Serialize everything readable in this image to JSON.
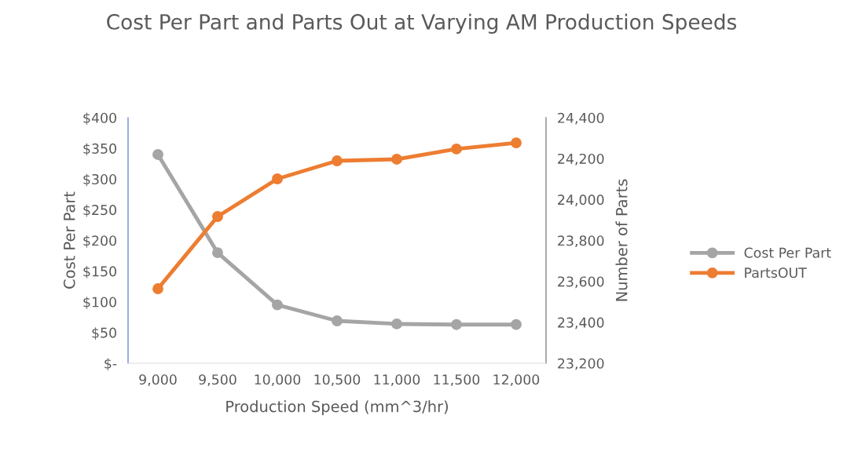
{
  "chart_data": {
    "type": "line",
    "title": "Cost Per Part and Parts Out at Varying AM Production Speeds",
    "xlabel": "Production Speed (mm^3/hr)",
    "ylabel": "Cost Per Part",
    "y2label": "Number of Parts",
    "categories": [
      "9,000",
      "9,500",
      "10,000",
      "10,500",
      "11,000",
      "11,500",
      "12,000"
    ],
    "series": [
      {
        "name": "Cost Per Part",
        "color": "#a5a5a5",
        "values": [
          340,
          180,
          95,
          69,
          64,
          63,
          63
        ]
      },
      {
        "name": "PartsOUT",
        "color": "#ed7d31",
        "axis": "y2",
        "values": [
          23564,
          23917,
          24101,
          24189,
          24197,
          24247,
          24277
        ]
      }
    ],
    "ylim": [
      0,
      400
    ],
    "yticks": [
      {
        "value": 0,
        "label": "$-"
      },
      {
        "value": 50,
        "label": "$50"
      },
      {
        "value": 100,
        "label": "$100"
      },
      {
        "value": 150,
        "label": "$150"
      },
      {
        "value": 200,
        "label": "$200"
      },
      {
        "value": 250,
        "label": "$250"
      },
      {
        "value": 300,
        "label": "$300"
      },
      {
        "value": 350,
        "label": "$350"
      },
      {
        "value": 400,
        "label": "$400"
      }
    ],
    "y2lim": [
      23200,
      24400
    ],
    "y2ticks": [
      {
        "value": 23200,
        "label": "23,200"
      },
      {
        "value": 23400,
        "label": "23,400"
      },
      {
        "value": 23600,
        "label": "23,600"
      },
      {
        "value": 23800,
        "label": "23,800"
      },
      {
        "value": 24000,
        "label": "24,000"
      },
      {
        "value": 24200,
        "label": "24,200"
      },
      {
        "value": 24400,
        "label": "24,400"
      }
    ],
    "marker": "circle",
    "line_style": "solid",
    "grid": false,
    "legend": "right"
  }
}
